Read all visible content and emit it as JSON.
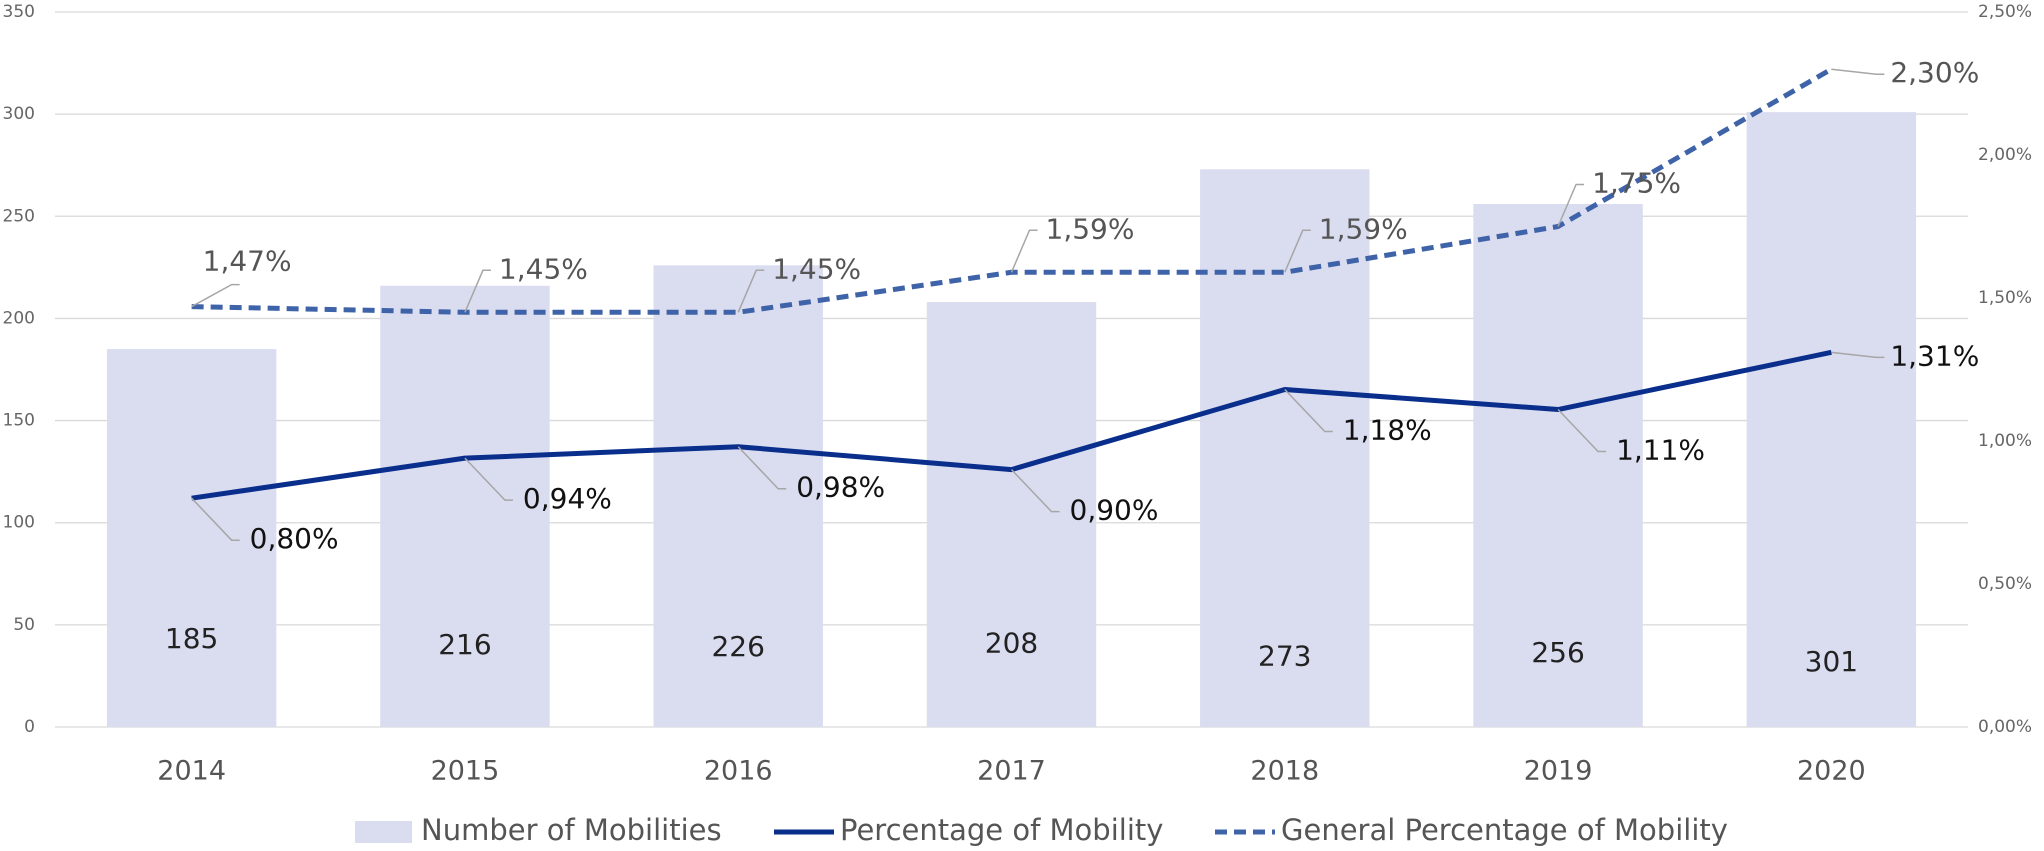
{
  "chart_data": {
    "type": "bar",
    "categories": [
      "2014",
      "2015",
      "2016",
      "2017",
      "2018",
      "2019",
      "2020"
    ],
    "series": [
      {
        "name": "Number of Mobilities",
        "type": "bar",
        "color": "#dadcf0",
        "values": [
          185,
          216,
          226,
          208,
          273,
          256,
          301
        ]
      },
      {
        "name": "Percentage of Mobility",
        "type": "line",
        "axis": "y2",
        "color": "#0a2e8c",
        "dashed": false,
        "values": [
          0.8,
          0.94,
          0.98,
          0.9,
          1.18,
          1.11,
          1.31
        ],
        "value_labels": [
          "0,80%",
          "0,94%",
          "0,98%",
          "0,90%",
          "1,18%",
          "1,11%",
          "1,31%"
        ]
      },
      {
        "name": "General Percentage of Mobility",
        "type": "line",
        "axis": "y2",
        "color": "#3f63a8",
        "dashed": true,
        "values": [
          1.47,
          1.45,
          1.45,
          1.59,
          1.59,
          1.75,
          2.3
        ],
        "value_labels": [
          "1,47%",
          "1,45%",
          "1,45%",
          "1,59%",
          "1,59%",
          "1,75%",
          "2,30%"
        ]
      }
    ],
    "ylim": [
      0,
      350
    ],
    "yticks": [
      0,
      50,
      100,
      150,
      200,
      250,
      300,
      350
    ],
    "y2lim": [
      0,
      2.5
    ],
    "y2ticks": [
      {
        "value": 0,
        "label": "0,00%"
      },
      {
        "value": 0.5,
        "label": "0,50%"
      },
      {
        "value": 1.0,
        "label": "1,00%"
      },
      {
        "value": 1.5,
        "label": "1,50%"
      },
      {
        "value": 2.0,
        "label": "2,00%"
      },
      {
        "value": 2.5,
        "label": "2,50%"
      }
    ],
    "grid": true,
    "legend": "bottom"
  }
}
